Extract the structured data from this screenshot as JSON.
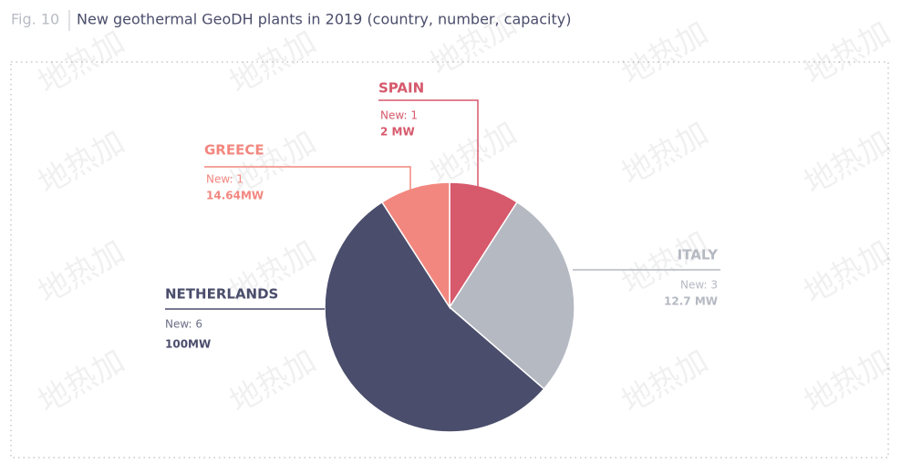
{
  "chart_data": {
    "type": "pie",
    "figure_label": "Fig. 10",
    "title": "New geothermal GeoDH plants in 2019 (country, number, capacity)",
    "categories": [
      "SPAIN",
      "ITALY",
      "NETHERLANDS",
      "GREECE"
    ],
    "values": [
      1,
      3,
      6,
      1
    ],
    "value_labels": [
      "New: 1",
      "New: 3",
      "New: 6",
      "New: 1"
    ],
    "capacity_labels": [
      "2 MW",
      "12.7 MW",
      "100MW",
      "14.64MW"
    ],
    "colors": [
      "#d6596c",
      "#b5b9c2",
      "#4a4d6b",
      "#f2877f"
    ]
  },
  "watermark": "地热加"
}
